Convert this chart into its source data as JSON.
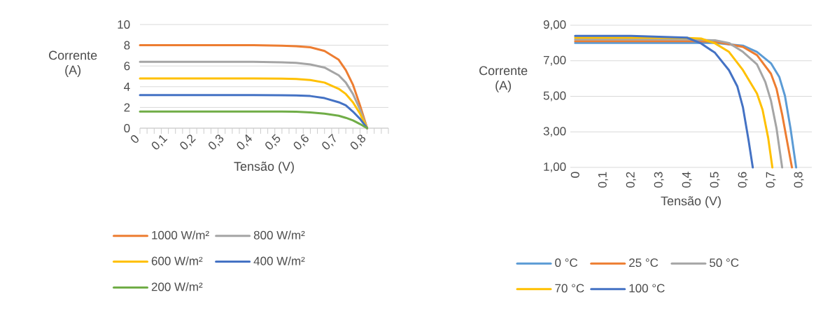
{
  "chart_data": [
    {
      "type": "line",
      "xlabel": "Tensão (V)",
      "ylabel": "Corrente (A)",
      "xlim": [
        0,
        0.875
      ],
      "ylim": [
        0,
        10
      ],
      "yticks": [
        0,
        2,
        4,
        6,
        8,
        10
      ],
      "xticks": [
        0,
        {
          "value": 0.025,
          "label": null
        },
        {
          "value": 0.05,
          "label": null
        },
        {
          "value": 0.075,
          "label": null
        },
        {
          "value": 0.1,
          "label": "0,1"
        },
        {
          "value": 0.125,
          "label": null
        },
        {
          "value": 0.15,
          "label": null
        },
        {
          "value": 0.175,
          "label": null
        },
        {
          "value": 0.2,
          "label": "0,2"
        },
        {
          "value": 0.225,
          "label": null
        },
        {
          "value": 0.25,
          "label": null
        },
        {
          "value": 0.275,
          "label": null
        },
        {
          "value": 0.3,
          "label": "0,3"
        },
        {
          "value": 0.325,
          "label": null
        },
        {
          "value": 0.35,
          "label": null
        },
        {
          "value": 0.375,
          "label": null
        },
        {
          "value": 0.4,
          "label": "0,4"
        },
        {
          "value": 0.425,
          "label": null
        },
        {
          "value": 0.45,
          "label": null
        },
        {
          "value": 0.475,
          "label": null
        },
        {
          "value": 0.5,
          "label": "0,5"
        },
        {
          "value": 0.525,
          "label": null
        },
        {
          "value": 0.55,
          "label": null
        },
        {
          "value": 0.575,
          "label": null
        },
        {
          "value": 0.6,
          "label": "0,6"
        },
        {
          "value": 0.625,
          "label": null
        },
        {
          "value": 0.65,
          "label": null
        },
        {
          "value": 0.675,
          "label": null
        },
        {
          "value": 0.7,
          "label": "0,7"
        },
        {
          "value": 0.725,
          "label": null
        },
        {
          "value": 0.75,
          "label": null
        },
        {
          "value": 0.775,
          "label": null
        },
        {
          "value": 0.8,
          "label": "0,8"
        },
        {
          "value": 0.825,
          "label": null
        },
        {
          "value": 0.85,
          "label": null
        },
        {
          "value": 0.875,
          "label": null
        }
      ],
      "grid": "y",
      "legend": "bottom",
      "line_style": "solid",
      "marker": "none",
      "x": [
        0,
        0.1,
        0.2,
        0.3,
        0.4,
        0.5,
        0.55,
        0.6,
        0.65,
        0.7,
        0.725,
        0.75,
        0.775,
        0.8
      ],
      "series": [
        {
          "name": "1000 W/m²",
          "color": "#ed7d31",
          "values": [
            8,
            8,
            8,
            8,
            8,
            7.95,
            7.9,
            7.8,
            7.45,
            6.6,
            5.6,
            4.2,
            2.2,
            0
          ]
        },
        {
          "name": "800 W/m²",
          "color": "#a5a5a5",
          "values": [
            6.4,
            6.4,
            6.4,
            6.4,
            6.4,
            6.35,
            6.3,
            6.15,
            5.85,
            5.1,
            4.4,
            3.3,
            1.8,
            0
          ]
        },
        {
          "name": "600 W/m²",
          "color": "#ffc000",
          "values": [
            4.8,
            4.8,
            4.8,
            4.8,
            4.8,
            4.78,
            4.75,
            4.65,
            4.4,
            3.8,
            3.3,
            2.5,
            1.4,
            0
          ]
        },
        {
          "name": "400 W/m²",
          "color": "#4472c4",
          "values": [
            3.2,
            3.2,
            3.2,
            3.2,
            3.2,
            3.18,
            3.15,
            3.1,
            2.9,
            2.5,
            2.2,
            1.6,
            0.9,
            0
          ]
        },
        {
          "name": "200 W/m²",
          "color": "#70ad47",
          "values": [
            1.6,
            1.6,
            1.6,
            1.6,
            1.6,
            1.6,
            1.58,
            1.52,
            1.4,
            1.2,
            1.0,
            0.75,
            0.4,
            0
          ]
        }
      ]
    },
    {
      "type": "line",
      "xlabel": "Tensão (V)",
      "ylabel": "Corrente (A)",
      "xlim": [
        -0.017,
        0.846
      ],
      "ylim": [
        1,
        9
      ],
      "xticks": [
        0,
        {
          "value": 0.1,
          "label": "0,1"
        },
        {
          "value": 0.2,
          "label": "0,2"
        },
        {
          "value": 0.3,
          "label": "0,3"
        },
        {
          "value": 0.4,
          "label": "0,4"
        },
        {
          "value": 0.5,
          "label": "0,5"
        },
        {
          "value": 0.6,
          "label": "0,6"
        },
        {
          "value": 0.7,
          "label": "0,7"
        },
        {
          "value": 0.8,
          "label": "0,8"
        }
      ],
      "yticks": [
        {
          "value": 1,
          "label": "1,00"
        },
        {
          "value": 3,
          "label": "3,00"
        },
        {
          "value": 5,
          "label": "5,00"
        },
        {
          "value": 7,
          "label": "7,00"
        },
        {
          "value": 9,
          "label": "9,00"
        }
      ],
      "grid": "y",
      "legend": "bottom",
      "line_style": "solid",
      "marker": "none",
      "series": [
        {
          "name": "0 °C",
          "color": "#5b9bd5",
          "x": [
            0,
            0.2,
            0.4,
            0.5,
            0.6,
            0.65,
            0.7,
            0.73,
            0.75,
            0.77,
            0.79
          ],
          "values": [
            8.0,
            8.0,
            8.0,
            8.0,
            7.85,
            7.5,
            6.86,
            6.08,
            5.03,
            3.19,
            1.0
          ]
        },
        {
          "name": "25 °C",
          "color": "#ed7d31",
          "x": [
            0,
            0.2,
            0.4,
            0.5,
            0.6,
            0.65,
            0.7,
            0.72,
            0.74,
            0.76,
            0.775
          ],
          "values": [
            8.1,
            8.1,
            8.1,
            8.08,
            7.78,
            7.32,
            6.27,
            5.42,
            3.98,
            2.27,
            1.0
          ]
        },
        {
          "name": "50 °C",
          "color": "#a5a5a5",
          "x": [
            0,
            0.2,
            0.4,
            0.5,
            0.55,
            0.6,
            0.65,
            0.68,
            0.7,
            0.72,
            0.74
          ],
          "values": [
            8.2,
            8.2,
            8.2,
            8.15,
            8.0,
            7.5,
            6.8,
            5.8,
            4.76,
            3.19,
            1.0
          ]
        },
        {
          "name": "70 °C",
          "color": "#ffc000",
          "x": [
            0,
            0.2,
            0.4,
            0.45,
            0.5,
            0.55,
            0.6,
            0.65,
            0.67,
            0.69,
            0.705
          ],
          "values": [
            8.3,
            8.3,
            8.28,
            8.25,
            7.98,
            7.5,
            6.47,
            5.16,
            4.24,
            2.67,
            1.0
          ]
        },
        {
          "name": "100 °C",
          "color": "#4472c4",
          "x": [
            0,
            0.2,
            0.3,
            0.4,
            0.45,
            0.5,
            0.55,
            0.58,
            0.6,
            0.62,
            0.635
          ],
          "values": [
            8.4,
            8.4,
            8.35,
            8.3,
            7.98,
            7.45,
            6.47,
            5.55,
            4.37,
            2.53,
            1.0
          ]
        }
      ]
    }
  ]
}
